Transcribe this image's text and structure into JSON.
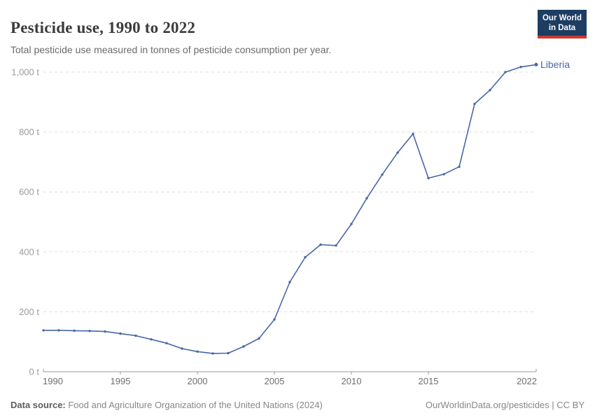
{
  "header": {
    "title": "Pesticide use, 1990 to 2022",
    "subtitle": "Total pesticide use measured in tonnes of pesticide consumption per year.",
    "logo": {
      "line1": "Our World",
      "line2": "in Data"
    }
  },
  "chart_data": {
    "type": "line",
    "title": "Pesticide use, 1990 to 2022",
    "xlabel": "",
    "ylabel": "",
    "unit": "t",
    "grid": true,
    "legend_position": "end-of-line",
    "xlim": [
      1990,
      2022
    ],
    "ylim": [
      0,
      1000
    ],
    "x_ticks": [
      1990,
      1995,
      2000,
      2005,
      2010,
      2015,
      2022
    ],
    "y_ticks": [
      {
        "value": 0,
        "label": "0 t"
      },
      {
        "value": 200,
        "label": "200 t"
      },
      {
        "value": 400,
        "label": "400 t"
      },
      {
        "value": 600,
        "label": "600 t"
      },
      {
        "value": 800,
        "label": "800 t"
      },
      {
        "value": 1000,
        "label": "1,000 t"
      }
    ],
    "series": [
      {
        "name": "Liberia",
        "color": "#4767a8",
        "x": [
          1990,
          1991,
          1992,
          1993,
          1994,
          1995,
          1996,
          1997,
          1998,
          1999,
          2000,
          2001,
          2002,
          2003,
          2004,
          2005,
          2006,
          2007,
          2008,
          2009,
          2010,
          2011,
          2012,
          2013,
          2014,
          2015,
          2016,
          2017,
          2018,
          2019,
          2020,
          2021,
          2022
        ],
        "values": [
          138,
          138,
          137,
          136,
          134,
          127,
          120,
          108,
          95,
          77,
          67,
          61,
          62,
          84,
          111,
          174,
          299,
          382,
          424,
          421,
          493,
          579,
          658,
          731,
          794,
          646,
          659,
          684,
          894,
          940,
          1000,
          1017,
          1025
        ]
      }
    ]
  },
  "footer": {
    "source_label": "Data source:",
    "source_value": " Food and Agriculture Organization of the United Nations (2024)",
    "right_text": "OurWorldinData.org/pesticides | CC BY"
  },
  "colors": {
    "line": "#4767a8",
    "logo_bg": "#1d3d63",
    "logo_accent": "#cc3a2e",
    "gridline": "#dedede",
    "axis": "#9a9a9a",
    "y_label": "#9c9c9c",
    "x_label": "#6e6e6e"
  }
}
